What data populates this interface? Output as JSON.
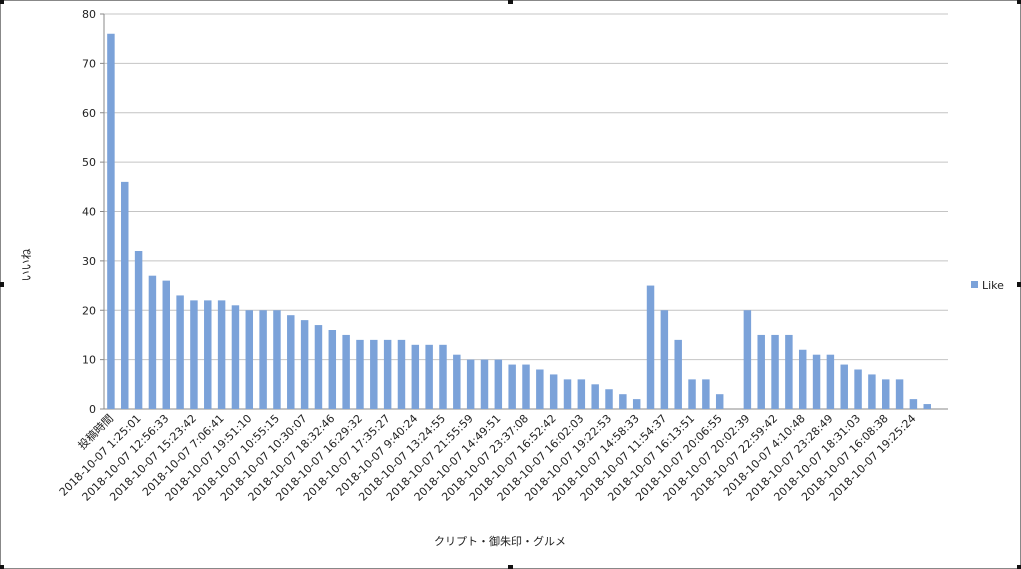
{
  "chart_data": {
    "type": "bar",
    "x_label": "クリプト・御朱印・グルメ",
    "y_label": "いいね",
    "categories": [
      "投稿時間",
      null,
      "2018-10-07 1:25:01",
      null,
      "2018-10-07 12:56:33",
      null,
      "2018-10-07 15:23:42",
      null,
      "2018-10-07 7:06:41",
      null,
      "2018-10-07 19:51:10",
      null,
      "2018-10-07 10:55:15",
      null,
      "2018-10-07 10:30:07",
      null,
      "2018-10-07 18:32:46",
      null,
      "2018-10-07 16:29:32",
      null,
      "2018-10-07 17:35:27",
      null,
      "2018-10-07 9:40:24",
      null,
      "2018-10-07 13:24:55",
      null,
      "2018-10-07 21:55:59",
      null,
      "2018-10-07 14:49:51",
      null,
      "2018-10-07 23:37:08",
      null,
      "2018-10-07 16:52:42",
      null,
      "2018-10-07 16:02:03",
      null,
      "2018-10-07 19:22:53",
      null,
      "2018-10-07 14:58:33",
      null,
      "2018-10-07 11:54:37",
      null,
      "2018-10-07 16:13:51",
      null,
      "2018-10-07 20:06:55",
      null,
      "2018-10-07 20:02:39",
      null,
      "2018-10-07 22:59:42",
      null,
      "2018-10-07 4:10:48",
      null,
      "2018-10-07 23:28:49",
      null,
      "2018-10-07 18:31:03",
      null,
      "2018-10-07 16:08:38",
      null,
      "2018-10-07 19:25:24",
      null,
      null
    ],
    "series": [
      {
        "name": "Like",
        "color": "#7ba2d9",
        "values": [
          76,
          46,
          32,
          27,
          26,
          23,
          22,
          22,
          22,
          21,
          20,
          20,
          20,
          19,
          18,
          17,
          16,
          15,
          14,
          14,
          14,
          14,
          13,
          13,
          13,
          11,
          10,
          10,
          10,
          9,
          9,
          8,
          7,
          6,
          6,
          5,
          4,
          3,
          2,
          25,
          20,
          14,
          6,
          6,
          3,
          0,
          20,
          15,
          15,
          15,
          12,
          11,
          11,
          9,
          8,
          7,
          6,
          6,
          2,
          1,
          0
        ]
      }
    ],
    "ylim": [
      0,
      80
    ],
    "yticks": [
      0,
      10,
      20,
      30,
      40,
      50,
      60,
      70,
      80
    ],
    "grid": true,
    "legend": "right"
  }
}
